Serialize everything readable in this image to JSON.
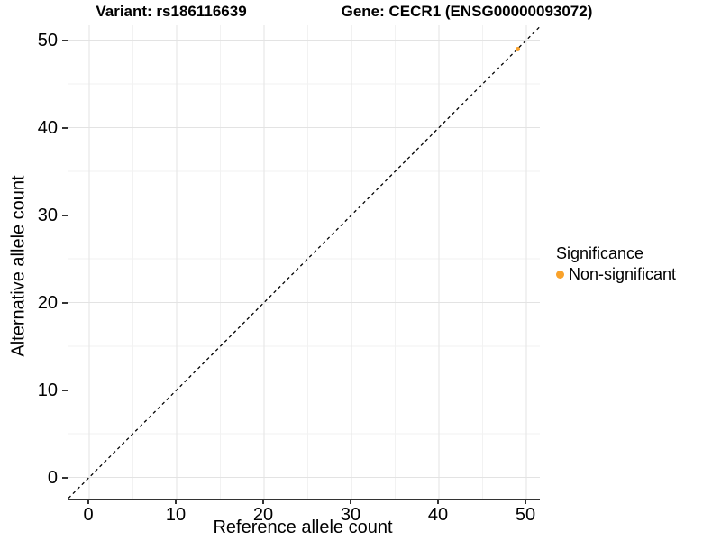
{
  "chart_data": {
    "type": "scatter",
    "titles": {
      "left": "Variant: rs186116639",
      "right": "Gene: CECR1 (ENSG00000093072)"
    },
    "xlabel": "Reference allele count",
    "ylabel": "Alternative allele count",
    "x_ticks": [
      "0",
      "10",
      "20",
      "30",
      "40",
      "50"
    ],
    "y_ticks": [
      "0",
      "10",
      "20",
      "30",
      "40",
      "50"
    ],
    "xlim": [
      -2.4,
      51.6
    ],
    "ylim": [
      -2.4,
      51.7
    ],
    "grid": {
      "major": true,
      "minor": true,
      "major_color": "#E3E3E3",
      "minor_color": "#F2F2F2"
    },
    "identity_line": {
      "slope": 1,
      "intercept": 0,
      "style": "dashed",
      "color": "#000000"
    },
    "series": [
      {
        "name": "Non-significant",
        "color": "#F9A22B",
        "points": [
          [
            49,
            49
          ]
        ]
      }
    ],
    "legend": {
      "title": "Significance",
      "position": "right",
      "items": [
        {
          "label": "Non-significant",
          "color": "#F9A22B",
          "marker": "circle"
        }
      ]
    }
  }
}
